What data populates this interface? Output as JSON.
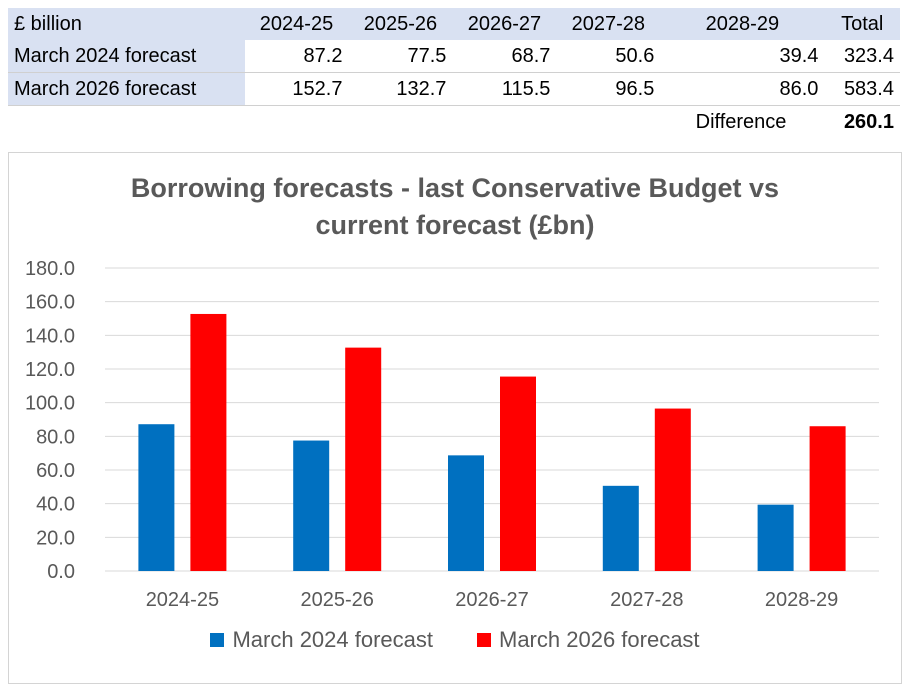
{
  "table": {
    "header": [
      "£ billion",
      "2024-25",
      "2025-26",
      "2026-27",
      "2027-28",
      "2028-29",
      "Total"
    ],
    "rows": [
      {
        "label": "March 2024 forecast",
        "values": [
          "87.2",
          "77.5",
          "68.7",
          "50.6",
          "39.4",
          "323.4"
        ]
      },
      {
        "label": "March 2026 forecast",
        "values": [
          "152.7",
          "132.7",
          "115.5",
          "96.5",
          "86.0",
          "583.4"
        ]
      }
    ],
    "difference_label": "Difference",
    "difference_value": "260.1"
  },
  "colors": {
    "march_2024": "#0070c0",
    "march_2026": "#ff0000",
    "grid": "#d9d9d9",
    "header_fill": "#d9e1f2"
  },
  "chart_data": {
    "type": "bar",
    "title_line1": "Borrowing forecasts - last Conservative Budget vs",
    "title_line2": "current forecast (£bn)",
    "categories": [
      "2024-25",
      "2025-26",
      "2026-27",
      "2027-28",
      "2028-29"
    ],
    "series": [
      {
        "name": "March 2024 forecast",
        "values": [
          87.2,
          77.5,
          68.7,
          50.6,
          39.4
        ]
      },
      {
        "name": "March 2026 forecast",
        "values": [
          152.7,
          132.7,
          115.5,
          96.5,
          86.0
        ]
      }
    ],
    "yticks": [
      "0.0",
      "20.0",
      "40.0",
      "60.0",
      "80.0",
      "100.0",
      "120.0",
      "140.0",
      "160.0",
      "180.0"
    ],
    "ylim": [
      0,
      180
    ],
    "grid": true,
    "legend_position": "bottom"
  }
}
